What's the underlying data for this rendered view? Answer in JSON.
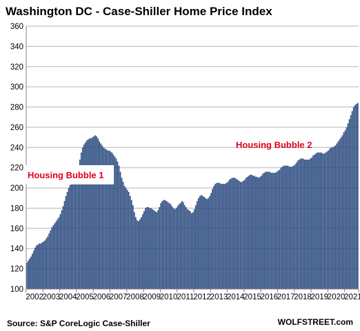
{
  "chart_data": {
    "type": "bar",
    "title": "Washington DC - Case-Shiller Home Price Index",
    "ylim": [
      100,
      360
    ],
    "yticks": [
      100,
      120,
      140,
      160,
      180,
      200,
      220,
      240,
      260,
      280,
      300,
      320,
      340,
      360
    ],
    "xticks": [
      "2002",
      "2003",
      "2004",
      "2005",
      "2006",
      "2007",
      "2008",
      "2009",
      "2010",
      "2011",
      "2012",
      "2013",
      "2014",
      "2015",
      "2016",
      "2017",
      "2018",
      "2019",
      "2020",
      "2021"
    ],
    "grid": true,
    "bar_color": "#2a4a7f",
    "annotations": [
      "Housing Bubble 1",
      "Housing Bubble 2"
    ],
    "annotation_color": "#e0001b",
    "series": [
      {
        "values": [
          126,
          128,
          130,
          132,
          135,
          138,
          141,
          143,
          144,
          145,
          145,
          146,
          147,
          148,
          150,
          152,
          155,
          158,
          161,
          163,
          165,
          167,
          169,
          171,
          174,
          178,
          182,
          187,
          192,
          196,
          200,
          203,
          205,
          206,
          207,
          209,
          213,
          220,
          228,
          235,
          240,
          243,
          245,
          247,
          248,
          249,
          249,
          250,
          251,
          252,
          251,
          249,
          246,
          244,
          242,
          240,
          239,
          238,
          237,
          237,
          236,
          235,
          233,
          231,
          229,
          226,
          222,
          216,
          210,
          206,
          202,
          200,
          198,
          196,
          192,
          188,
          183,
          176,
          171,
          168,
          167,
          169,
          171,
          174,
          177,
          180,
          181,
          181,
          180,
          180,
          179,
          178,
          177,
          176,
          178,
          181,
          185,
          187,
          188,
          188,
          187,
          186,
          185,
          184,
          182,
          180,
          179,
          180,
          182,
          184,
          185,
          187,
          186,
          183,
          181,
          179,
          178,
          177,
          175,
          176,
          179,
          183,
          187,
          190,
          192,
          193,
          192,
          191,
          190,
          189,
          190,
          192,
          195,
          199,
          202,
          204,
          205,
          205,
          205,
          204,
          204,
          204,
          204,
          205,
          206,
          208,
          209,
          210,
          210,
          210,
          209,
          208,
          207,
          206,
          206,
          207,
          208,
          210,
          211,
          212,
          213,
          213,
          212,
          212,
          211,
          211,
          210,
          211,
          212,
          214,
          215,
          216,
          216,
          216,
          216,
          215,
          215,
          215,
          215,
          216,
          217,
          218,
          220,
          221,
          222,
          222,
          222,
          222,
          221,
          221,
          221,
          222,
          223,
          225,
          227,
          228,
          229,
          229,
          229,
          228,
          228,
          228,
          228,
          229,
          230,
          232,
          233,
          234,
          235,
          235,
          235,
          235,
          234,
          234,
          235,
          236,
          237,
          239,
          240,
          240,
          241,
          242,
          244,
          246,
          248,
          250,
          252,
          255,
          257,
          260,
          264,
          268,
          272,
          276,
          280,
          282,
          283,
          284
        ]
      }
    ]
  },
  "source_text": "Source: S&P CoreLogic Case-Shiller",
  "brand_text": "WOLFSTREET.com"
}
